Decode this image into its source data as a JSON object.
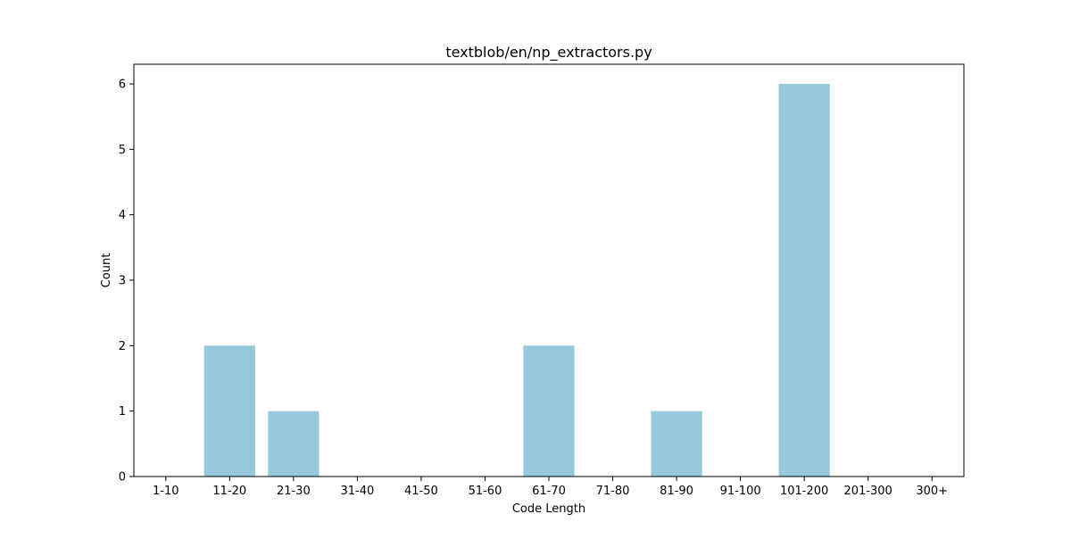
{
  "chart_data": {
    "type": "bar",
    "title": "textblob/en/np_extractors.py",
    "xlabel": "Code Length",
    "ylabel": "Count",
    "categories": [
      "1-10",
      "11-20",
      "21-30",
      "31-40",
      "41-50",
      "51-60",
      "61-70",
      "71-80",
      "81-90",
      "91-100",
      "101-200",
      "201-300",
      "300+"
    ],
    "values": [
      0,
      2,
      1,
      0,
      0,
      0,
      2,
      0,
      1,
      0,
      6,
      0,
      0
    ],
    "ylim": [
      0,
      6.3
    ],
    "yticks": [
      0,
      1,
      2,
      3,
      4,
      5,
      6
    ],
    "bar_color": "#96c9dc",
    "grid": false,
    "legend": "none"
  }
}
